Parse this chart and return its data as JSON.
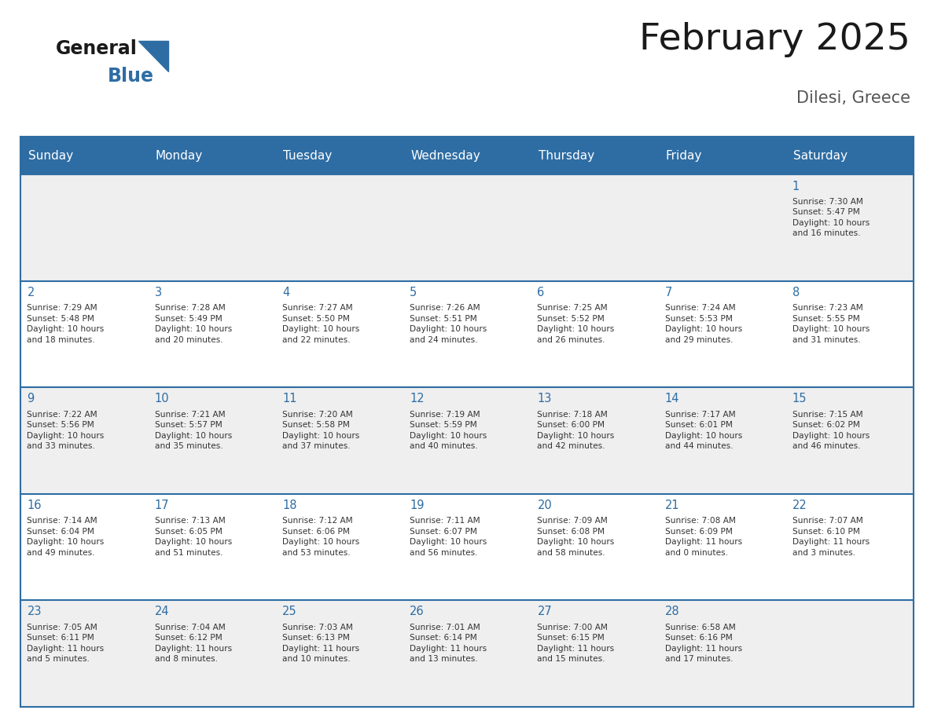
{
  "title": "February 2025",
  "subtitle": "Dilesi, Greece",
  "header_bg": "#2E6DA4",
  "header_text": "#FFFFFF",
  "cell_bg_row0": "#EFEFEF",
  "cell_bg_row1": "#FFFFFF",
  "cell_bg_row2": "#EFEFEF",
  "cell_bg_row3": "#FFFFFF",
  "cell_bg_row4": "#EFEFEF",
  "day_number_color": "#2E6DA4",
  "info_text_color": "#333333",
  "border_color": "#2E6DA4",
  "days_of_week": [
    "Sunday",
    "Monday",
    "Tuesday",
    "Wednesday",
    "Thursday",
    "Friday",
    "Saturday"
  ],
  "calendar_data": [
    [
      null,
      null,
      null,
      null,
      null,
      null,
      {
        "day": "1",
        "sunrise": "7:30 AM",
        "sunset": "5:47 PM",
        "daylight_h": "10 hours",
        "daylight_m": "and 16 minutes."
      }
    ],
    [
      {
        "day": "2",
        "sunrise": "7:29 AM",
        "sunset": "5:48 PM",
        "daylight_h": "10 hours",
        "daylight_m": "and 18 minutes."
      },
      {
        "day": "3",
        "sunrise": "7:28 AM",
        "sunset": "5:49 PM",
        "daylight_h": "10 hours",
        "daylight_m": "and 20 minutes."
      },
      {
        "day": "4",
        "sunrise": "7:27 AM",
        "sunset": "5:50 PM",
        "daylight_h": "10 hours",
        "daylight_m": "and 22 minutes."
      },
      {
        "day": "5",
        "sunrise": "7:26 AM",
        "sunset": "5:51 PM",
        "daylight_h": "10 hours",
        "daylight_m": "and 24 minutes."
      },
      {
        "day": "6",
        "sunrise": "7:25 AM",
        "sunset": "5:52 PM",
        "daylight_h": "10 hours",
        "daylight_m": "and 26 minutes."
      },
      {
        "day": "7",
        "sunrise": "7:24 AM",
        "sunset": "5:53 PM",
        "daylight_h": "10 hours",
        "daylight_m": "and 29 minutes."
      },
      {
        "day": "8",
        "sunrise": "7:23 AM",
        "sunset": "5:55 PM",
        "daylight_h": "10 hours",
        "daylight_m": "and 31 minutes."
      }
    ],
    [
      {
        "day": "9",
        "sunrise": "7:22 AM",
        "sunset": "5:56 PM",
        "daylight_h": "10 hours",
        "daylight_m": "and 33 minutes."
      },
      {
        "day": "10",
        "sunrise": "7:21 AM",
        "sunset": "5:57 PM",
        "daylight_h": "10 hours",
        "daylight_m": "and 35 minutes."
      },
      {
        "day": "11",
        "sunrise": "7:20 AM",
        "sunset": "5:58 PM",
        "daylight_h": "10 hours",
        "daylight_m": "and 37 minutes."
      },
      {
        "day": "12",
        "sunrise": "7:19 AM",
        "sunset": "5:59 PM",
        "daylight_h": "10 hours",
        "daylight_m": "and 40 minutes."
      },
      {
        "day": "13",
        "sunrise": "7:18 AM",
        "sunset": "6:00 PM",
        "daylight_h": "10 hours",
        "daylight_m": "and 42 minutes."
      },
      {
        "day": "14",
        "sunrise": "7:17 AM",
        "sunset": "6:01 PM",
        "daylight_h": "10 hours",
        "daylight_m": "and 44 minutes."
      },
      {
        "day": "15",
        "sunrise": "7:15 AM",
        "sunset": "6:02 PM",
        "daylight_h": "10 hours",
        "daylight_m": "and 46 minutes."
      }
    ],
    [
      {
        "day": "16",
        "sunrise": "7:14 AM",
        "sunset": "6:04 PM",
        "daylight_h": "10 hours",
        "daylight_m": "and 49 minutes."
      },
      {
        "day": "17",
        "sunrise": "7:13 AM",
        "sunset": "6:05 PM",
        "daylight_h": "10 hours",
        "daylight_m": "and 51 minutes."
      },
      {
        "day": "18",
        "sunrise": "7:12 AM",
        "sunset": "6:06 PM",
        "daylight_h": "10 hours",
        "daylight_m": "and 53 minutes."
      },
      {
        "day": "19",
        "sunrise": "7:11 AM",
        "sunset": "6:07 PM",
        "daylight_h": "10 hours",
        "daylight_m": "and 56 minutes."
      },
      {
        "day": "20",
        "sunrise": "7:09 AM",
        "sunset": "6:08 PM",
        "daylight_h": "10 hours",
        "daylight_m": "and 58 minutes."
      },
      {
        "day": "21",
        "sunrise": "7:08 AM",
        "sunset": "6:09 PM",
        "daylight_h": "11 hours",
        "daylight_m": "and 0 minutes."
      },
      {
        "day": "22",
        "sunrise": "7:07 AM",
        "sunset": "6:10 PM",
        "daylight_h": "11 hours",
        "daylight_m": "and 3 minutes."
      }
    ],
    [
      {
        "day": "23",
        "sunrise": "7:05 AM",
        "sunset": "6:11 PM",
        "daylight_h": "11 hours",
        "daylight_m": "and 5 minutes."
      },
      {
        "day": "24",
        "sunrise": "7:04 AM",
        "sunset": "6:12 PM",
        "daylight_h": "11 hours",
        "daylight_m": "and 8 minutes."
      },
      {
        "day": "25",
        "sunrise": "7:03 AM",
        "sunset": "6:13 PM",
        "daylight_h": "11 hours",
        "daylight_m": "and 10 minutes."
      },
      {
        "day": "26",
        "sunrise": "7:01 AM",
        "sunset": "6:14 PM",
        "daylight_h": "11 hours",
        "daylight_m": "and 13 minutes."
      },
      {
        "day": "27",
        "sunrise": "7:00 AM",
        "sunset": "6:15 PM",
        "daylight_h": "11 hours",
        "daylight_m": "and 15 minutes."
      },
      {
        "day": "28",
        "sunrise": "6:58 AM",
        "sunset": "6:16 PM",
        "daylight_h": "11 hours",
        "daylight_m": "and 17 minutes."
      },
      null
    ]
  ]
}
